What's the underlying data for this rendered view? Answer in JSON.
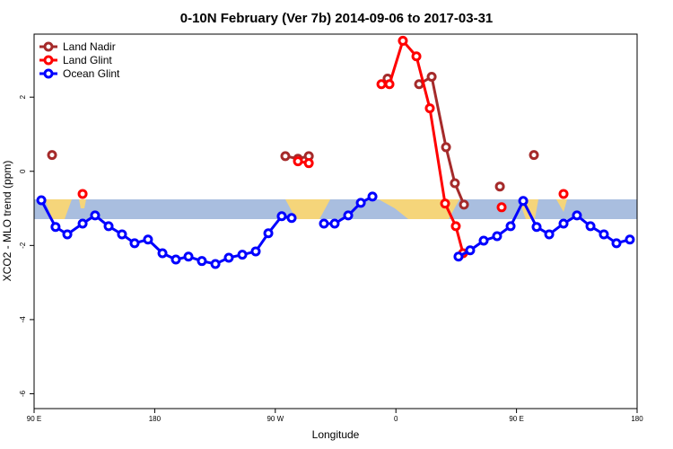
{
  "chart_data": {
    "type": "line",
    "title": "0-10N February (Ver 7b)   2014-09-06 to 2017-03-31",
    "x_label": "Longitude",
    "y_label": "XCO2 - MLO trend (ppm)",
    "xlim": [
      90,
      540
    ],
    "ylim": [
      -6.4,
      3.7
    ],
    "xticks": [
      {
        "value": 90,
        "label": "90 E"
      },
      180,
      {
        "value": 270,
        "label": "90 W"
      },
      {
        "value": 360,
        "label": "0"
      },
      {
        "value": 450,
        "label": "90 E"
      },
      {
        "value": 540,
        "label": "180"
      }
    ],
    "yticks": [
      -6,
      -4,
      -2,
      0,
      2
    ],
    "legend": "top-left",
    "series": [
      {
        "name": "Land Nadir",
        "color": "#a52a2a",
        "x": [
          103.4,
          190,
          277.5,
          286.9,
          295,
          320,
          353.8,
          365,
          377.3,
          386.7,
          397.4,
          404,
          410.8,
          420,
          437.6,
          450,
          463
        ],
        "values": [
          0.44,
          null,
          0.41,
          0.34,
          0.41,
          null,
          2.5,
          null,
          2.35,
          2.55,
          0.65,
          -0.32,
          -0.9,
          null,
          -0.41,
          null,
          0.44
        ]
      },
      {
        "name": "Land Glint",
        "color": "#ff0000",
        "x": [
          126.2,
          200,
          286.9,
          295,
          320,
          349.2,
          355.2,
          365.2,
          375.3,
          385.3,
          396.7,
          404.7,
          410.1,
          420,
          438.9,
          460,
          485.1
        ],
        "values": [
          -0.61,
          null,
          0.27,
          0.22,
          null,
          2.35,
          2.35,
          3.52,
          3.1,
          1.7,
          -0.87,
          -1.48,
          -2.21,
          null,
          -0.97,
          null,
          -0.61
        ]
      },
      {
        "name": "Ocean Glint",
        "color": "#0000ff",
        "x": [
          95.4,
          106,
          114.8,
          126.2,
          135.5,
          145.6,
          155.6,
          165,
          175,
          185.8,
          195.8,
          205.2,
          215.2,
          225.3,
          235.3,
          245.4,
          255.4,
          264.8,
          274.8,
          282.2,
          294,
          306.3,
          314.3,
          324.4,
          333.8,
          342.5,
          375,
          406.7,
          415.4,
          425.5,
          435.5,
          445.6,
          455,
          465,
          474.4,
          485.1,
          495.1,
          505.2,
          515.2,
          524.6,
          534.6
        ],
        "values": [
          -0.78,
          -1.5,
          -1.7,
          -1.41,
          -1.19,
          -1.48,
          -1.7,
          -1.94,
          -1.84,
          -2.21,
          -2.38,
          -2.3,
          -2.42,
          -2.5,
          -2.33,
          -2.25,
          -2.16,
          -1.67,
          -1.21,
          -1.26,
          null,
          -1.41,
          -1.41,
          -1.19,
          -0.85,
          -0.68,
          null,
          -2.3,
          -2.13,
          -1.87,
          -1.75,
          -1.48,
          -0.8,
          -1.5,
          -1.7,
          -1.41,
          -1.19,
          -1.48,
          -1.7,
          -1.94,
          -1.84
        ]
      }
    ]
  }
}
